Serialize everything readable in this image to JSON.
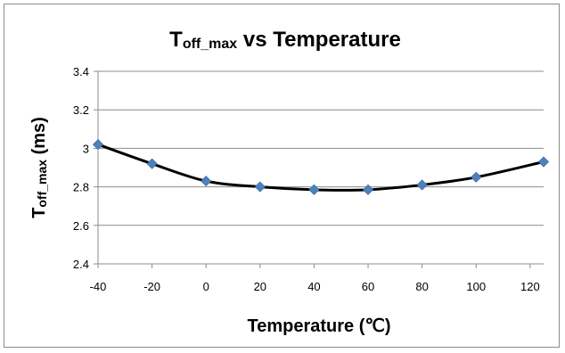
{
  "chart_data": {
    "type": "line",
    "title": {
      "main": "T",
      "sub": "off_max",
      "rest": " vs Temperature"
    },
    "xlabel": "Temperature (℃)",
    "ylabel": {
      "main": "T",
      "sub": "off_max",
      "rest": " (ms)"
    },
    "xlim": [
      -40,
      125
    ],
    "ylim": [
      2.4,
      3.4
    ],
    "x_ticks": [
      -40,
      -20,
      0,
      20,
      40,
      60,
      80,
      100,
      120
    ],
    "x_tick_labels": [
      "-40",
      "-20",
      "0",
      "20",
      "40",
      "60",
      "80",
      "100",
      "120"
    ],
    "y_ticks": [
      2.4,
      2.6,
      2.8,
      3.0,
      3.2,
      3.4
    ],
    "y_tick_labels": [
      "2.4",
      "2.6",
      "2.8",
      "3",
      "3.2",
      "3.4"
    ],
    "grid": "horizontal",
    "legend": "none",
    "series": [
      {
        "line_color": "#000000",
        "marker_color": "#4f81bd",
        "marker": "diamond",
        "smooth": true,
        "x": [
          -40,
          -20,
          0,
          20,
          40,
          60,
          80,
          100,
          125
        ],
        "y": [
          3.02,
          2.92,
          2.83,
          2.8,
          2.785,
          2.785,
          2.81,
          2.85,
          2.93
        ]
      }
    ]
  }
}
